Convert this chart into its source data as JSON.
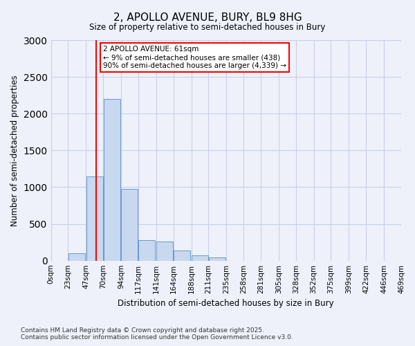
{
  "title_line1": "2, APOLLO AVENUE, BURY, BL9 8HG",
  "title_line2": "Size of property relative to semi-detached houses in Bury",
  "xlabel": "Distribution of semi-detached houses by size in Bury",
  "ylabel": "Number of semi-detached properties",
  "bins": [
    0,
    23,
    47,
    70,
    94,
    117,
    141,
    164,
    188,
    211,
    235,
    258,
    281,
    305,
    328,
    352,
    375,
    399,
    422,
    446,
    469
  ],
  "bin_labels": [
    "0sqm",
    "23sqm",
    "47sqm",
    "70sqm",
    "94sqm",
    "117sqm",
    "141sqm",
    "164sqm",
    "188sqm",
    "211sqm",
    "235sqm",
    "258sqm",
    "281sqm",
    "305sqm",
    "328sqm",
    "352sqm",
    "375sqm",
    "399sqm",
    "422sqm",
    "446sqm",
    "469sqm"
  ],
  "bar_heights": [
    0,
    100,
    1150,
    2200,
    975,
    275,
    265,
    140,
    70,
    45,
    0,
    0,
    0,
    0,
    0,
    0,
    0,
    0,
    0,
    0
  ],
  "bar_color": "#c8d8ef",
  "bar_edge_color": "#6699cc",
  "ylim": [
    0,
    3000
  ],
  "yticks": [
    0,
    500,
    1000,
    1500,
    2000,
    2500,
    3000
  ],
  "property_size": 61,
  "property_line_color": "red",
  "annotation_text": "2 APOLLO AVENUE: 61sqm\n← 9% of semi-detached houses are smaller (438)\n90% of semi-detached houses are larger (4,339) →",
  "annotation_box_color": "white",
  "annotation_box_edge_color": "red",
  "footer_line1": "Contains HM Land Registry data © Crown copyright and database right 2025.",
  "footer_line2": "Contains public sector information licensed under the Open Government Licence v3.0.",
  "background_color": "#eef1fa",
  "grid_color": "#c8cfe8"
}
